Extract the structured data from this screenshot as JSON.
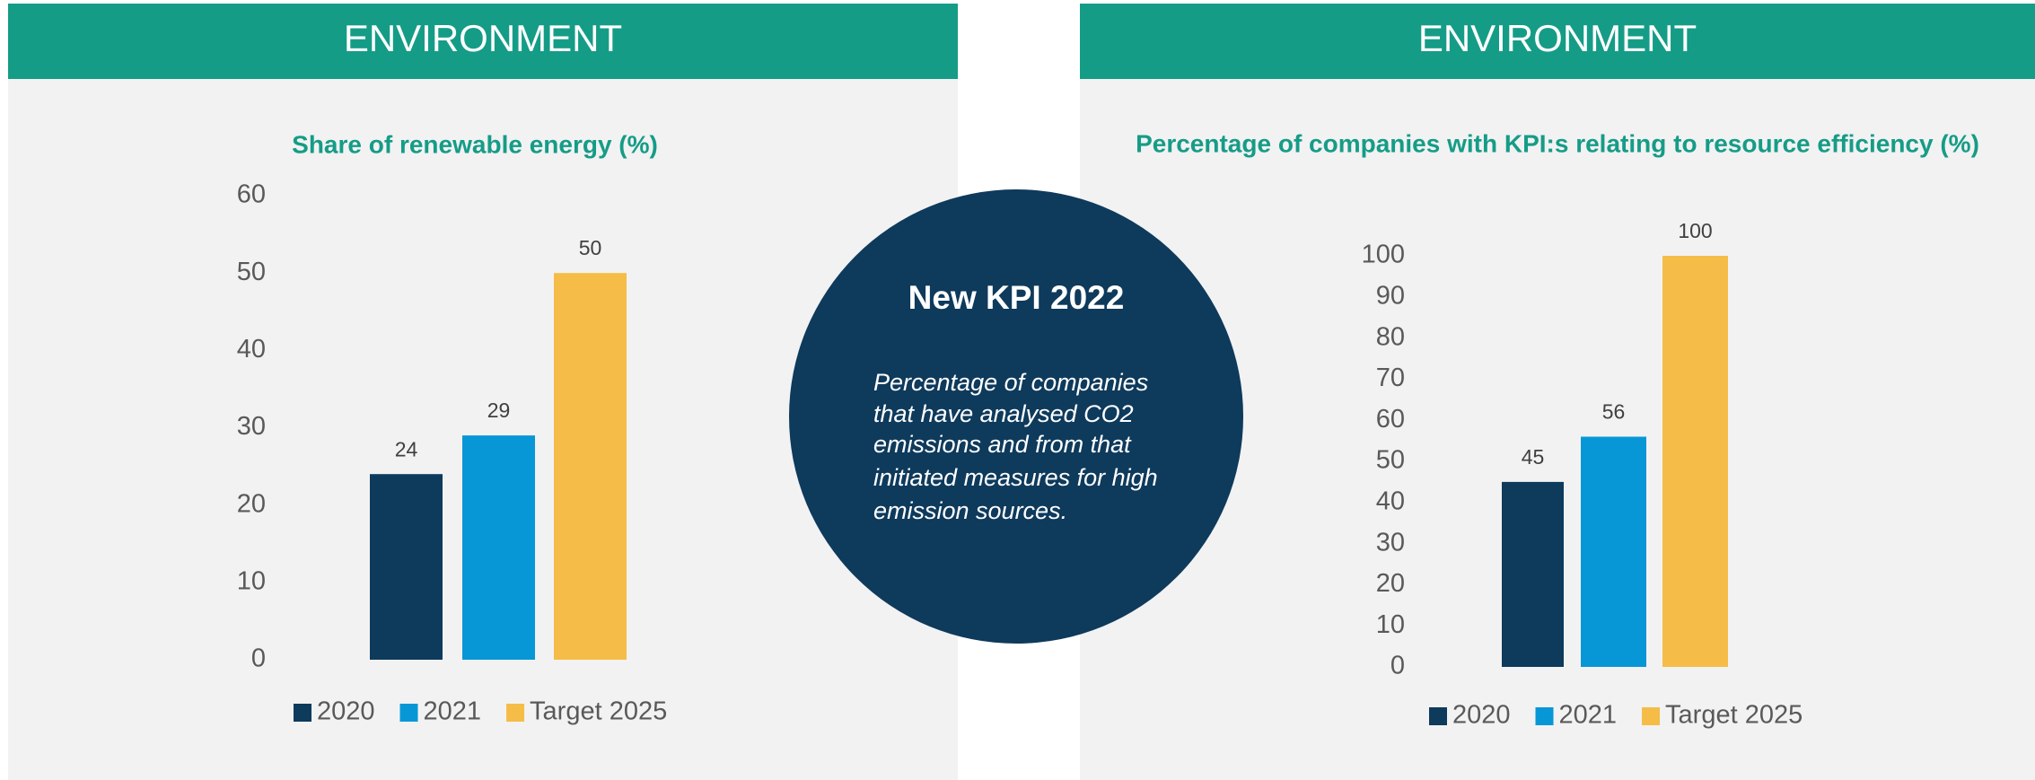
{
  "chart_data": [
    {
      "type": "bar",
      "header": "ENVIRONMENT",
      "title": "Share of renewable energy  (%)",
      "series": [
        {
          "name": "2020",
          "color": "#0e3a5c",
          "values": [
            24
          ]
        },
        {
          "name": "2021",
          "color": "#0897d6",
          "values": [
            29
          ]
        },
        {
          "name": "Target 2025",
          "color": "#f5bd47",
          "values": [
            50
          ]
        }
      ],
      "ylim": [
        0,
        60
      ],
      "yticks": [
        0,
        10,
        20,
        30,
        40,
        50,
        60
      ],
      "grid": false,
      "legend": "bottom"
    },
    {
      "type": "bar",
      "header": "ENVIRONMENT",
      "title": "Percentage of companies with KPI:s relating to resource efficiency  (%)",
      "series": [
        {
          "name": "2020",
          "color": "#0e3a5c",
          "values": [
            45
          ]
        },
        {
          "name": "2021",
          "color": "#0897d6",
          "values": [
            56
          ]
        },
        {
          "name": "Target 2025",
          "color": "#f5bd47",
          "values": [
            100
          ]
        }
      ],
      "ylim": [
        0,
        100
      ],
      "yticks": [
        0,
        10,
        20,
        30,
        40,
        50,
        60,
        70,
        80,
        90,
        100
      ],
      "grid": false,
      "legend": "bottom"
    }
  ],
  "callout": {
    "title": "New KPI 2022",
    "lines": [
      "Percentage of companies",
      "that have analysed CO2",
      "emissions and from that",
      "initiated measures for high",
      "emission sources."
    ]
  }
}
